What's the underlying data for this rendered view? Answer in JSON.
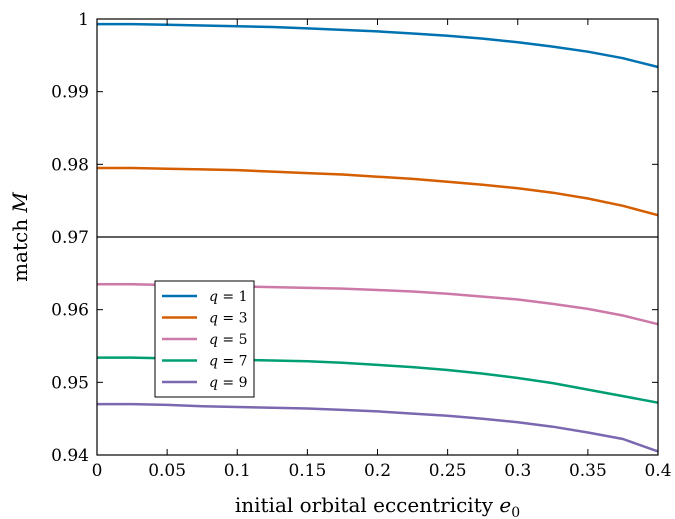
{
  "chart_data": {
    "type": "line",
    "title": "",
    "xlabel": "initial orbital eccentricity ",
    "xlabel_var": "e",
    "xlabel_sub": "0",
    "ylabel": "match ",
    "ylabel_var": "M",
    "xlim": [
      0,
      0.4
    ],
    "ylim": [
      0.94,
      1.0
    ],
    "x_ticks": [
      0,
      0.05,
      0.1,
      0.15,
      0.2,
      0.25,
      0.3,
      0.35,
      0.4
    ],
    "x_tick_labels": [
      "0",
      "0.05",
      "0.1",
      "0.15",
      "0.2",
      "0.25",
      "0.3",
      "0.35",
      "0.4"
    ],
    "y_ticks": [
      0.94,
      0.95,
      0.96,
      0.97,
      0.98,
      0.99,
      1.0
    ],
    "y_tick_labels": [
      "0.94",
      "0.95",
      "0.96",
      "0.97",
      "0.98",
      "0.99",
      "1"
    ],
    "grid": false,
    "separator_y": 0.97,
    "legend_position": "center-left",
    "x": [
      0,
      0.025,
      0.05,
      0.075,
      0.1,
      0.125,
      0.15,
      0.175,
      0.2,
      0.225,
      0.25,
      0.275,
      0.3,
      0.325,
      0.35,
      0.375,
      0.4
    ],
    "series": [
      {
        "name": "q = 1",
        "legend_var": "q",
        "legend_rest": " = 1",
        "color": "#0072b2",
        "values": [
          0.9993,
          0.9993,
          0.9992,
          0.9991,
          0.999,
          0.9989,
          0.9987,
          0.9985,
          0.9983,
          0.998,
          0.9977,
          0.9973,
          0.9968,
          0.9962,
          0.9955,
          0.9946,
          0.9934
        ]
      },
      {
        "name": "q = 3",
        "legend_var": "q",
        "legend_rest": " = 3",
        "color": "#d55e00",
        "values": [
          0.9795,
          0.9795,
          0.9794,
          0.9793,
          0.9792,
          0.979,
          0.9788,
          0.9786,
          0.9783,
          0.978,
          0.9776,
          0.9772,
          0.9767,
          0.9761,
          0.9753,
          0.9743,
          0.973
        ]
      },
      {
        "name": "q = 5",
        "legend_var": "q",
        "legend_rest": " = 5",
        "color": "#cc79a7",
        "values": [
          0.9635,
          0.9635,
          0.9634,
          0.9633,
          0.9632,
          0.9631,
          0.963,
          0.9629,
          0.9627,
          0.9625,
          0.9622,
          0.9618,
          0.9614,
          0.9608,
          0.9601,
          0.9592,
          0.958
        ]
      },
      {
        "name": "q = 7",
        "legend_var": "q",
        "legend_rest": " = 7",
        "color": "#009e73",
        "values": [
          0.9534,
          0.9534,
          0.9533,
          0.9532,
          0.9531,
          0.953,
          0.9529,
          0.9527,
          0.9524,
          0.9521,
          0.9517,
          0.9512,
          0.9506,
          0.9499,
          0.949,
          0.9481,
          0.9472
        ]
      },
      {
        "name": "q = 9",
        "legend_var": "q",
        "legend_rest": " = 9",
        "color": "#7b68b0",
        "values": [
          0.947,
          0.947,
          0.9469,
          0.9467,
          0.9466,
          0.9465,
          0.9464,
          0.9462,
          0.946,
          0.9457,
          0.9454,
          0.945,
          0.9445,
          0.9439,
          0.9431,
          0.9422,
          0.9405
        ]
      }
    ]
  }
}
